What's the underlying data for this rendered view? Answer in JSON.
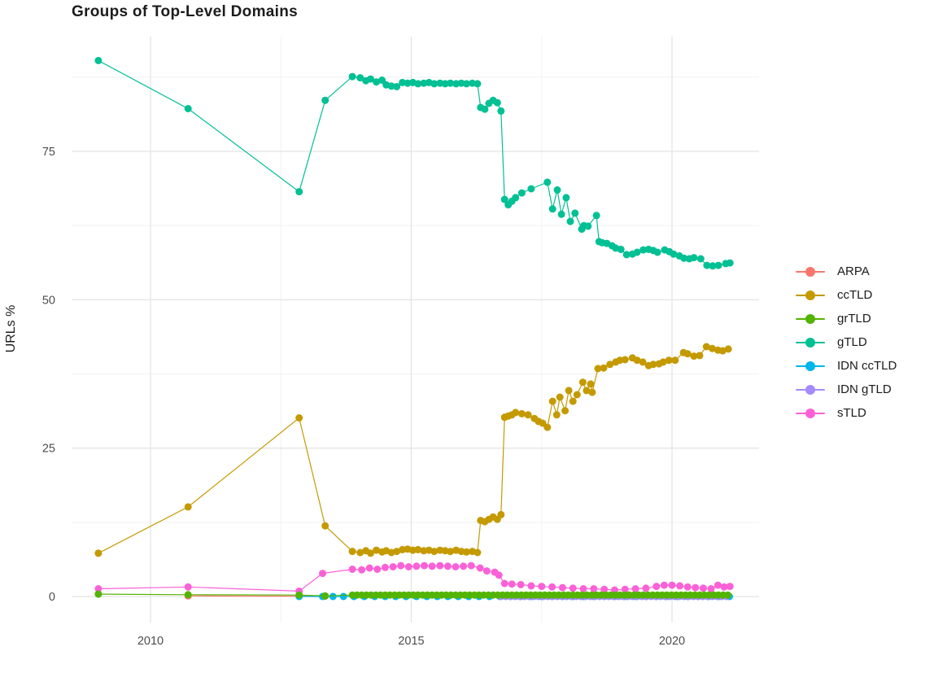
{
  "title": "Groups of Top-Level Domains",
  "axes": {
    "y_label": "URLs %",
    "y_tick_labels": [
      "0",
      "25",
      "50",
      "75"
    ],
    "x_tick_labels": [
      "2010",
      "2015",
      "2020"
    ]
  },
  "chart_data": {
    "type": "line",
    "title": "Groups of Top-Level Domains",
    "xlabel": "",
    "ylabel": "URLs %",
    "xlim": [
      2008.5,
      2021.7
    ],
    "ylim": [
      -4,
      94
    ],
    "grid": true,
    "legend_position": "right",
    "x_major": [
      2010,
      2015,
      2020
    ],
    "x_minor": [
      2012.5,
      2017.5
    ],
    "y_major": [
      0,
      25,
      50,
      75
    ],
    "y_minor": [
      12.5,
      37.5,
      62.5,
      87.5
    ],
    "series": [
      {
        "name": "ARPA",
        "color": "#F8766D",
        "points": [
          [
            2010.72,
            0.1
          ],
          [
            2012.85,
            0.05
          ],
          [
            2013.35,
            0.05
          ]
        ]
      },
      {
        "name": "ccTLD",
        "color": "#C49A00",
        "points": [
          [
            2009.0,
            7.3
          ],
          [
            2010.72,
            15.1
          ],
          [
            2012.85,
            30.1
          ],
          [
            2013.35,
            11.9
          ],
          [
            2013.87,
            7.6
          ],
          [
            2014.02,
            7.4
          ],
          [
            2014.13,
            7.7
          ],
          [
            2014.22,
            7.3
          ],
          [
            2014.33,
            7.8
          ],
          [
            2014.44,
            7.5
          ],
          [
            2014.52,
            7.7
          ],
          [
            2014.62,
            7.4
          ],
          [
            2014.72,
            7.6
          ],
          [
            2014.83,
            7.9
          ],
          [
            2014.93,
            8.0
          ],
          [
            2015.03,
            7.8
          ],
          [
            2015.13,
            7.9
          ],
          [
            2015.24,
            7.7
          ],
          [
            2015.34,
            7.8
          ],
          [
            2015.44,
            7.6
          ],
          [
            2015.55,
            7.8
          ],
          [
            2015.65,
            7.7
          ],
          [
            2015.75,
            7.6
          ],
          [
            2015.86,
            7.8
          ],
          [
            2015.96,
            7.6
          ],
          [
            2016.06,
            7.5
          ],
          [
            2016.17,
            7.6
          ],
          [
            2016.27,
            7.4
          ],
          [
            2016.33,
            12.8
          ],
          [
            2016.41,
            12.6
          ],
          [
            2016.49,
            13.0
          ],
          [
            2016.57,
            13.4
          ],
          [
            2016.65,
            13.0
          ],
          [
            2016.72,
            13.8
          ],
          [
            2016.79,
            30.2
          ],
          [
            2016.86,
            30.4
          ],
          [
            2016.93,
            30.6
          ],
          [
            2017.0,
            31.0
          ],
          [
            2017.12,
            30.8
          ],
          [
            2017.24,
            30.6
          ],
          [
            2017.36,
            30.0
          ],
          [
            2017.44,
            29.5
          ],
          [
            2017.52,
            29.2
          ],
          [
            2017.61,
            28.5
          ],
          [
            2017.71,
            32.9
          ],
          [
            2017.79,
            30.6
          ],
          [
            2017.85,
            33.6
          ],
          [
            2017.95,
            31.3
          ],
          [
            2018.02,
            34.7
          ],
          [
            2018.1,
            32.9
          ],
          [
            2018.18,
            34.0
          ],
          [
            2018.29,
            36.1
          ],
          [
            2018.36,
            34.7
          ],
          [
            2018.44,
            35.8
          ],
          [
            2018.47,
            34.4
          ],
          [
            2018.58,
            38.4
          ],
          [
            2018.69,
            38.5
          ],
          [
            2018.81,
            39.1
          ],
          [
            2018.92,
            39.5
          ],
          [
            2019.0,
            39.8
          ],
          [
            2019.1,
            39.9
          ],
          [
            2019.24,
            40.2
          ],
          [
            2019.33,
            39.8
          ],
          [
            2019.44,
            39.5
          ],
          [
            2019.55,
            38.9
          ],
          [
            2019.64,
            39.1
          ],
          [
            2019.75,
            39.2
          ],
          [
            2019.83,
            39.5
          ],
          [
            2019.94,
            39.8
          ],
          [
            2020.06,
            39.8
          ],
          [
            2020.22,
            41.1
          ],
          [
            2020.3,
            40.9
          ],
          [
            2020.42,
            40.5
          ],
          [
            2020.53,
            40.6
          ],
          [
            2020.66,
            42.1
          ],
          [
            2020.77,
            41.8
          ],
          [
            2020.88,
            41.5
          ],
          [
            2020.97,
            41.4
          ],
          [
            2021.08,
            41.7
          ]
        ]
      },
      {
        "name": "grTLD",
        "color": "#53B400",
        "points": [
          [
            2009.0,
            0.4
          ],
          [
            2010.72,
            0.3
          ],
          [
            2012.85,
            0.25
          ],
          [
            2013.35,
            0.1
          ]
        ],
        "segments": [
          {
            "from": 2013.87,
            "to": 2021.11,
            "step": 0.09,
            "value": 0.25
          }
        ]
      },
      {
        "name": "gTLD",
        "color": "#00C094",
        "points": [
          [
            2009.0,
            90.3
          ],
          [
            2010.72,
            82.2
          ],
          [
            2012.85,
            68.2
          ],
          [
            2013.35,
            83.6
          ],
          [
            2013.87,
            87.6
          ],
          [
            2014.02,
            87.4
          ],
          [
            2014.13,
            86.9
          ],
          [
            2014.22,
            87.2
          ],
          [
            2014.33,
            86.7
          ],
          [
            2014.44,
            87.0
          ],
          [
            2014.52,
            86.2
          ],
          [
            2014.62,
            86.0
          ],
          [
            2014.72,
            85.9
          ],
          [
            2014.83,
            86.6
          ],
          [
            2014.93,
            86.5
          ],
          [
            2015.03,
            86.6
          ],
          [
            2015.13,
            86.4
          ],
          [
            2015.24,
            86.5
          ],
          [
            2015.34,
            86.6
          ],
          [
            2015.44,
            86.4
          ],
          [
            2015.55,
            86.5
          ],
          [
            2015.65,
            86.4
          ],
          [
            2015.75,
            86.5
          ],
          [
            2015.86,
            86.4
          ],
          [
            2015.96,
            86.5
          ],
          [
            2016.06,
            86.4
          ],
          [
            2016.17,
            86.5
          ],
          [
            2016.27,
            86.4
          ],
          [
            2016.33,
            82.4
          ],
          [
            2016.41,
            82.1
          ],
          [
            2016.49,
            83.1
          ],
          [
            2016.57,
            83.6
          ],
          [
            2016.65,
            83.2
          ],
          [
            2016.72,
            81.8
          ],
          [
            2016.79,
            66.9
          ],
          [
            2016.86,
            66.0
          ],
          [
            2016.93,
            66.6
          ],
          [
            2017.0,
            67.2
          ],
          [
            2017.12,
            68.0
          ],
          [
            2017.3,
            68.7
          ],
          [
            2017.61,
            69.8
          ],
          [
            2017.71,
            65.3
          ],
          [
            2017.8,
            68.5
          ],
          [
            2017.88,
            64.4
          ],
          [
            2017.97,
            67.2
          ],
          [
            2018.05,
            63.2
          ],
          [
            2018.14,
            64.6
          ],
          [
            2018.27,
            61.9
          ],
          [
            2018.31,
            62.5
          ],
          [
            2018.39,
            62.4
          ],
          [
            2018.55,
            64.2
          ],
          [
            2018.6,
            59.8
          ],
          [
            2018.66,
            59.6
          ],
          [
            2018.75,
            59.5
          ],
          [
            2018.85,
            59.1
          ],
          [
            2018.92,
            58.7
          ],
          [
            2019.02,
            58.5
          ],
          [
            2019.13,
            57.6
          ],
          [
            2019.24,
            57.7
          ],
          [
            2019.33,
            58.0
          ],
          [
            2019.45,
            58.4
          ],
          [
            2019.55,
            58.5
          ],
          [
            2019.64,
            58.3
          ],
          [
            2019.72,
            58.0
          ],
          [
            2019.86,
            58.4
          ],
          [
            2019.95,
            58.1
          ],
          [
            2020.03,
            57.7
          ],
          [
            2020.14,
            57.4
          ],
          [
            2020.23,
            57.0
          ],
          [
            2020.33,
            56.9
          ],
          [
            2020.42,
            57.1
          ],
          [
            2020.55,
            56.9
          ],
          [
            2020.67,
            55.8
          ],
          [
            2020.78,
            55.7
          ],
          [
            2020.89,
            55.8
          ],
          [
            2021.03,
            56.1
          ],
          [
            2021.11,
            56.2
          ]
        ]
      },
      {
        "name": "IDN ccTLD",
        "color": "#00B6EB",
        "points": [
          [
            2012.85,
            0.0
          ],
          [
            2013.3,
            0.0
          ]
        ],
        "segments": [
          {
            "from": 2013.5,
            "to": 2021.11,
            "step": 0.2,
            "value": 0.0
          }
        ]
      },
      {
        "name": "IDN gTLD",
        "color": "#A58AFF",
        "points": [],
        "segments": [
          {
            "from": 2016.72,
            "to": 2021.11,
            "step": 0.09,
            "value": 0.0
          }
        ]
      },
      {
        "name": "sTLD",
        "color": "#FB61D7",
        "points": [
          [
            2009.0,
            1.3
          ],
          [
            2010.72,
            1.6
          ],
          [
            2012.85,
            0.9
          ],
          [
            2013.3,
            3.9
          ],
          [
            2013.87,
            4.6
          ],
          [
            2014.05,
            4.5
          ],
          [
            2014.2,
            4.8
          ],
          [
            2014.35,
            4.6
          ],
          [
            2014.5,
            4.9
          ],
          [
            2014.65,
            5.0
          ],
          [
            2014.8,
            5.2
          ],
          [
            2014.95,
            5.0
          ],
          [
            2015.1,
            5.1
          ],
          [
            2015.25,
            5.2
          ],
          [
            2015.4,
            5.1
          ],
          [
            2015.55,
            5.2
          ],
          [
            2015.7,
            5.1
          ],
          [
            2015.85,
            5.0
          ],
          [
            2016.0,
            5.1
          ],
          [
            2016.15,
            5.2
          ],
          [
            2016.32,
            4.8
          ],
          [
            2016.45,
            4.3
          ],
          [
            2016.6,
            4.1
          ],
          [
            2016.68,
            3.6
          ],
          [
            2016.79,
            2.2
          ],
          [
            2016.93,
            2.1
          ],
          [
            2017.1,
            2.0
          ],
          [
            2017.3,
            1.8
          ],
          [
            2017.5,
            1.7
          ],
          [
            2017.7,
            1.6
          ],
          [
            2017.9,
            1.5
          ],
          [
            2018.1,
            1.4
          ],
          [
            2018.3,
            1.3
          ],
          [
            2018.5,
            1.3
          ],
          [
            2018.7,
            1.2
          ],
          [
            2018.9,
            1.1
          ],
          [
            2019.1,
            1.2
          ],
          [
            2019.3,
            1.3
          ],
          [
            2019.5,
            1.4
          ],
          [
            2019.7,
            1.7
          ],
          [
            2019.85,
            1.9
          ],
          [
            2020.0,
            1.9
          ],
          [
            2020.15,
            1.8
          ],
          [
            2020.3,
            1.6
          ],
          [
            2020.45,
            1.5
          ],
          [
            2020.6,
            1.4
          ],
          [
            2020.75,
            1.3
          ],
          [
            2020.88,
            1.9
          ],
          [
            2021.0,
            1.6
          ],
          [
            2021.11,
            1.7
          ]
        ]
      }
    ]
  }
}
